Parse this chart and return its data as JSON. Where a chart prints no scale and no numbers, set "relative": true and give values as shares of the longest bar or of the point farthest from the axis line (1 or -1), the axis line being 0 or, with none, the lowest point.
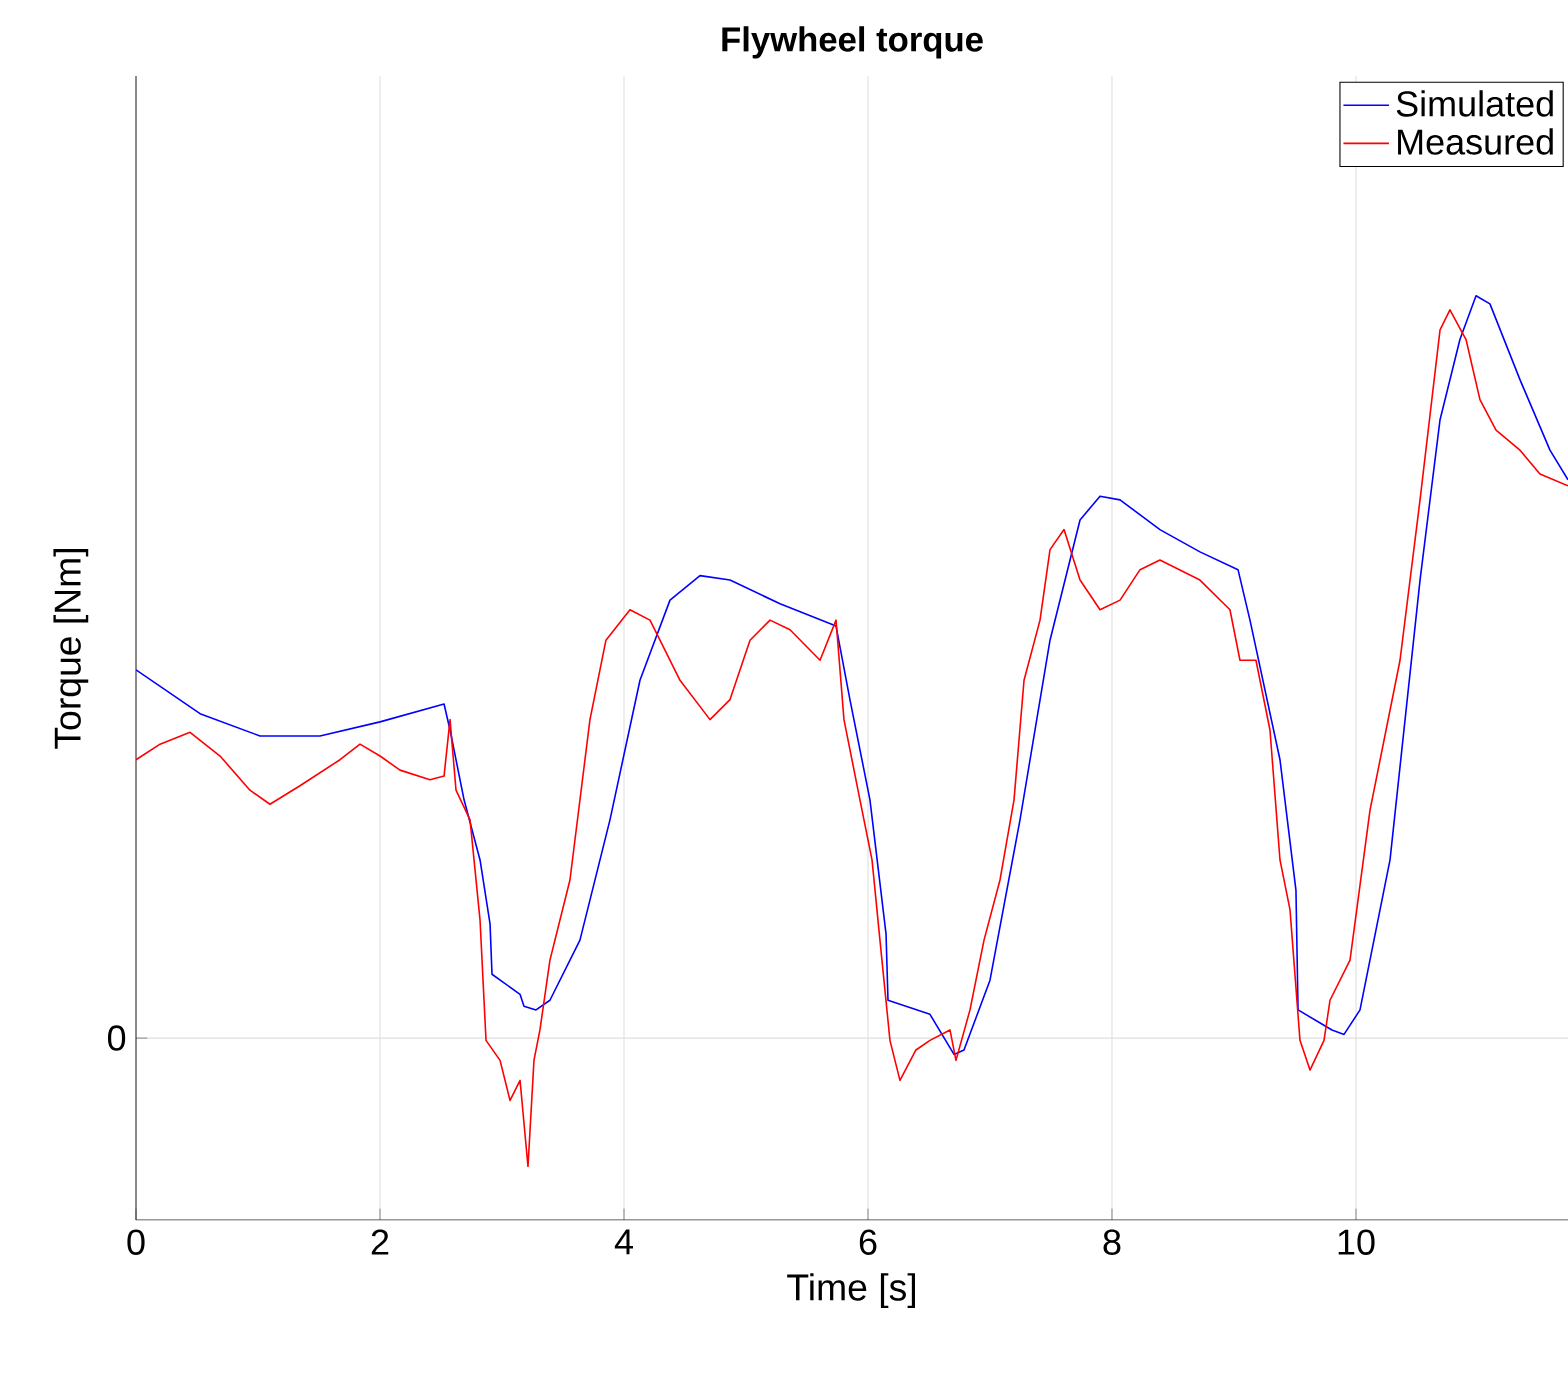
{
  "chart_data": {
    "type": "line",
    "title": "Flywheel torque",
    "xlabel": "Time [s]",
    "ylabel": "Torque [Nm]",
    "relative": true,
    "xlim": [
      0,
      11.738
    ],
    "xticks": [
      0,
      2,
      4,
      6,
      8,
      10
    ],
    "grid": true,
    "legend": "top right",
    "annotations": [
      "0"
    ],
    "series": [
      {
        "name": "Simulated",
        "color": "#0000ff",
        "x": [
          0,
          0.525,
          1.016,
          1.508,
          2.0,
          2.525,
          2.574,
          2.689,
          2.82,
          2.902,
          2.918,
          3.148,
          3.18,
          3.279,
          3.393,
          3.639,
          3.885,
          4.131,
          4.377,
          4.623,
          4.869,
          5.279,
          5.738,
          5.852,
          6.016,
          6.148,
          6.164,
          6.508,
          6.705,
          6.787,
          7.0,
          7.246,
          7.492,
          7.738,
          7.902,
          8.066,
          8.393,
          8.721,
          9.033,
          9.131,
          9.377,
          9.508,
          9.525,
          9.803,
          9.902,
          10.033,
          10.279,
          10.525,
          10.689,
          10.852,
          10.984,
          11.098,
          11.344,
          11.59,
          11.738
        ],
        "values": [
          0.496,
          0.437,
          0.407,
          0.407,
          0.426,
          0.45,
          0.415,
          0.321,
          0.24,
          0.154,
          0.086,
          0.059,
          0.043,
          0.038,
          0.051,
          0.132,
          0.294,
          0.482,
          0.59,
          0.623,
          0.617,
          0.585,
          0.555,
          0.456,
          0.321,
          0.14,
          0.051,
          0.032,
          -0.022,
          -0.016,
          0.078,
          0.294,
          0.536,
          0.698,
          0.73,
          0.725,
          0.685,
          0.655,
          0.631,
          0.563,
          0.375,
          0.199,
          0.038,
          0.011,
          0.005,
          0.038,
          0.24,
          0.617,
          0.833,
          0.941,
          1,
          0.989,
          0.887,
          0.792,
          0.752
        ]
      },
      {
        "name": "Measured",
        "color": "#ff0000",
        "x": [
          0,
          0.197,
          0.443,
          0.689,
          0.934,
          1.098,
          1.344,
          1.672,
          1.836,
          2.0,
          2.164,
          2.41,
          2.525,
          2.574,
          2.623,
          2.738,
          2.82,
          2.869,
          2.984,
          3.066,
          3.148,
          3.213,
          3.262,
          3.311,
          3.393,
          3.557,
          3.721,
          3.852,
          4.049,
          4.213,
          4.295,
          4.459,
          4.705,
          4.869,
          5.033,
          5.197,
          5.361,
          5.607,
          5.738,
          5.803,
          5.934,
          6.033,
          6.098,
          6.18,
          6.262,
          6.393,
          6.508,
          6.672,
          6.721,
          6.836,
          6.951,
          7.082,
          7.197,
          7.279,
          7.41,
          7.492,
          7.607,
          7.738,
          7.902,
          8.066,
          8.23,
          8.393,
          8.721,
          8.967,
          9.049,
          9.18,
          9.295,
          9.377,
          9.459,
          9.541,
          9.623,
          9.738,
          9.787,
          9.951,
          10.115,
          10.361,
          10.525,
          10.689,
          10.77,
          10.902,
          11.016,
          11.148,
          11.344,
          11.508,
          11.738
        ],
        "values": [
          0.375,
          0.396,
          0.412,
          0.38,
          0.334,
          0.315,
          0.34,
          0.375,
          0.396,
          0.38,
          0.361,
          0.348,
          0.353,
          0.429,
          0.334,
          0.294,
          0.159,
          -0.003,
          -0.03,
          -0.084,
          -0.057,
          -0.173,
          -0.03,
          0.011,
          0.105,
          0.213,
          0.429,
          0.536,
          0.577,
          0.563,
          0.536,
          0.482,
          0.429,
          0.456,
          0.536,
          0.563,
          0.55,
          0.509,
          0.563,
          0.429,
          0.321,
          0.24,
          0.132,
          -0.003,
          -0.057,
          -0.016,
          -0.003,
          0.011,
          -0.03,
          0.038,
          0.132,
          0.213,
          0.321,
          0.482,
          0.563,
          0.658,
          0.685,
          0.617,
          0.577,
          0.59,
          0.631,
          0.644,
          0.617,
          0.577,
          0.509,
          0.509,
          0.415,
          0.24,
          0.173,
          -0.003,
          -0.043,
          -0.003,
          0.051,
          0.105,
          0.307,
          0.509,
          0.725,
          0.954,
          0.981,
          0.941,
          0.86,
          0.819,
          0.792,
          0.76,
          0.744
        ]
      }
    ]
  }
}
